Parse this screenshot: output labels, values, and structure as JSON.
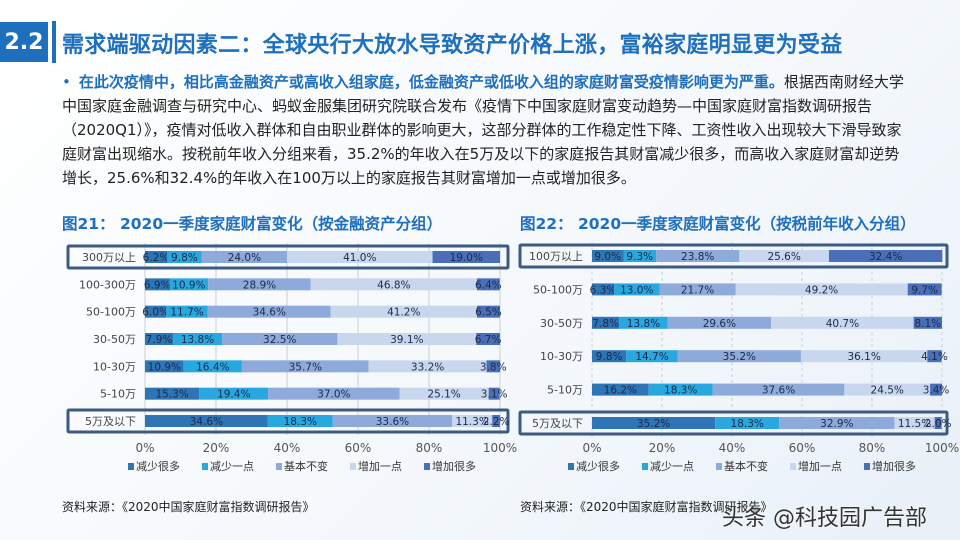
{
  "header": {
    "section_number": "2.2",
    "title": "需求端驱动因素二：全球央行大放水导致资产价格上涨，富裕家庭明显更为受益"
  },
  "body": {
    "highlight": "在此次疫情中，相比高金融资产或高收入组家庭，低金融资产或低收入组的家庭财富受疫情影响更为严重。",
    "text": "根据西南财经大学中国家庭金融调查与研究中心、蚂蚁金服集团研究院联合发布《疫情下中国家庭财富变动趋势—中国家庭财富指数调研报告（2020Q1）》，疫情对低收入群体和自由职业群体的影响更大，这部分群体的工作稳定性下降、工资性收入出现较大下滑导致家庭财富出现缩水。按税前年收入分组来看，35.2%的年收入在5万及以下的家庭报告其财富减少很多，而高收入家庭财富却逆势增长，25.6%和32.4%的年收入在100万以上的家庭报告其财富增加一点或增加很多。"
  },
  "colors": {
    "accent": "#1f6fbf",
    "series": [
      "#2e75b6",
      "#29a8e0",
      "#8eaadb",
      "#c9d7ee",
      "#4a6fb8"
    ],
    "highlight_box": "#3c5a82"
  },
  "chart_data": [
    {
      "type": "bar",
      "orientation": "horizontal",
      "stacked": "percent",
      "title": "图21： 2020一季度家庭财富变化（按金融资产分组）",
      "categories": [
        "300万以上",
        "100-300万",
        "50-100万",
        "30-50万",
        "10-30万",
        "5-10万",
        "5万及以下"
      ],
      "highlighted": [
        "300万以上",
        "5万及以下"
      ],
      "series": [
        {
          "name": "减少很多",
          "values": [
            6.2,
            6.9,
            6.0,
            7.9,
            10.9,
            15.3,
            34.6
          ]
        },
        {
          "name": "减少一点",
          "values": [
            9.8,
            10.9,
            11.7,
            13.8,
            16.4,
            19.4,
            18.3
          ]
        },
        {
          "name": "基本不变",
          "values": [
            24.0,
            28.9,
            34.6,
            32.5,
            35.7,
            37.0,
            33.6
          ]
        },
        {
          "name": "增加一点",
          "values": [
            41.0,
            46.8,
            41.2,
            39.1,
            33.2,
            25.1,
            11.3
          ]
        },
        {
          "name": "增加很多",
          "values": [
            19.0,
            6.4,
            6.5,
            6.7,
            3.8,
            3.1,
            2.2
          ]
        }
      ],
      "xlim": [
        0,
        100
      ],
      "xticks": [
        "0%",
        "20%",
        "40%",
        "60%",
        "80%",
        "100%"
      ],
      "legend": "bottom",
      "grid": true,
      "source": "资料来源：《2020中国家庭财富指数调研报告》"
    },
    {
      "type": "bar",
      "orientation": "horizontal",
      "stacked": "percent",
      "title": "图22： 2020一季度家庭财富变化（按税前年收入分组）",
      "categories": [
        "100万以上",
        "50-100万",
        "30-50万",
        "10-30万",
        "5-10万",
        "5万及以下"
      ],
      "highlighted": [
        "100万以上",
        "5万及以下"
      ],
      "series": [
        {
          "name": "减少很多",
          "values": [
            9.0,
            6.3,
            7.8,
            9.8,
            16.2,
            35.2
          ]
        },
        {
          "name": "减少一点",
          "values": [
            9.3,
            13.0,
            13.8,
            14.7,
            18.3,
            18.3
          ]
        },
        {
          "name": "基本不变",
          "values": [
            23.8,
            21.7,
            29.6,
            35.2,
            37.6,
            32.9
          ]
        },
        {
          "name": "增加一点",
          "values": [
            25.6,
            49.2,
            40.7,
            36.1,
            24.5,
            11.5
          ]
        },
        {
          "name": "增加很多",
          "values": [
            32.4,
            9.7,
            8.1,
            4.1,
            3.4,
            2.0
          ]
        }
      ],
      "xlim": [
        0,
        100
      ],
      "xticks": [
        "0%",
        "20%",
        "40%",
        "60%",
        "80%",
        "100%"
      ],
      "legend": "bottom",
      "grid": true,
      "source": "资料来源：《2020中国家庭财富指数调研报告》"
    }
  ],
  "watermark": "头条 @科技园广告部"
}
